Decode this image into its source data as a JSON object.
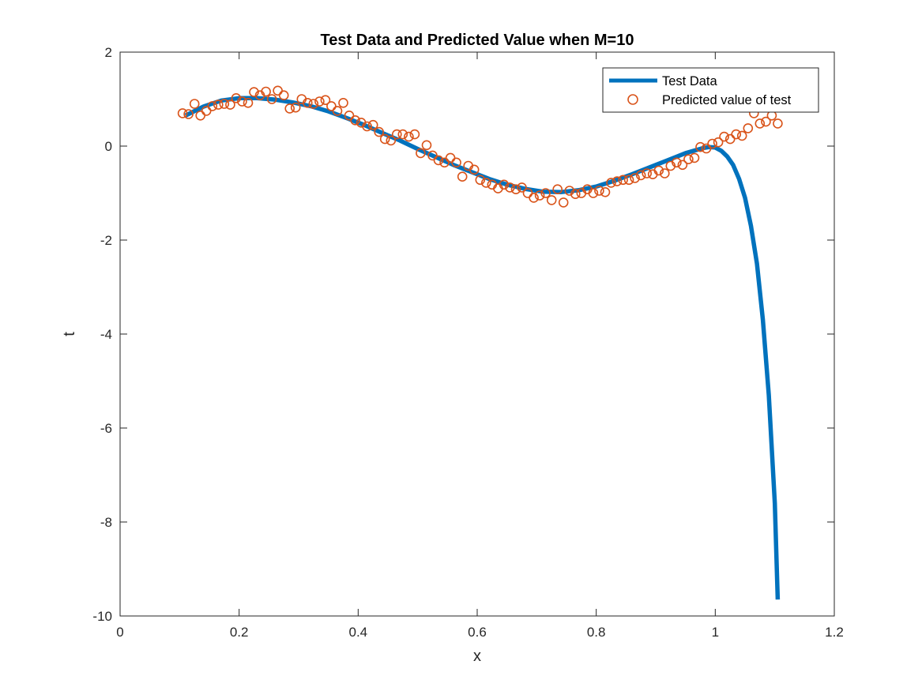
{
  "chart_data": {
    "type": "line",
    "title": "Test Data and Predicted Value when M=10",
    "xlabel": "x",
    "ylabel": "t",
    "xlim": [
      0,
      1.2
    ],
    "ylim": [
      -10,
      2
    ],
    "xticks": [
      0,
      0.2,
      0.4,
      0.6,
      0.8,
      1,
      1.2
    ],
    "xtick_labels": [
      "0",
      "0.2",
      "0.4",
      "0.6",
      "0.8",
      "1",
      "1.2"
    ],
    "yticks": [
      -10,
      -8,
      -6,
      -4,
      -2,
      0,
      2
    ],
    "ytick_labels": [
      "-10",
      "-8",
      "-6",
      "-4",
      "-2",
      "0",
      "2"
    ],
    "grid": false,
    "legend_position": "top-right",
    "colors": {
      "line": "#0072BD",
      "markers": "#D95319",
      "axes": "#262626"
    },
    "series": [
      {
        "name": "Test Data",
        "kind": "line",
        "x": [
          0.11,
          0.14,
          0.17,
          0.2,
          0.23,
          0.26,
          0.29,
          0.32,
          0.35,
          0.38,
          0.41,
          0.44,
          0.47,
          0.5,
          0.53,
          0.56,
          0.59,
          0.62,
          0.65,
          0.68,
          0.71,
          0.74,
          0.77,
          0.8,
          0.83,
          0.86,
          0.89,
          0.92,
          0.95,
          0.98,
          0.99,
          1.0,
          1.01,
          1.02,
          1.03,
          1.04,
          1.05,
          1.06,
          1.07,
          1.08,
          1.09,
          1.1,
          1.105
        ],
        "y": [
          0.65,
          0.84,
          0.97,
          1.02,
          1.02,
          0.99,
          0.93,
          0.85,
          0.74,
          0.6,
          0.45,
          0.28,
          0.12,
          -0.06,
          -0.23,
          -0.4,
          -0.55,
          -0.7,
          -0.82,
          -0.91,
          -0.97,
          -0.98,
          -0.94,
          -0.86,
          -0.74,
          -0.6,
          -0.45,
          -0.3,
          -0.15,
          -0.04,
          -0.02,
          -0.03,
          -0.1,
          -0.22,
          -0.4,
          -0.7,
          -1.1,
          -1.7,
          -2.5,
          -3.7,
          -5.3,
          -7.6,
          -9.65
        ]
      },
      {
        "name": "Predicted value of test",
        "kind": "markers",
        "x": [
          0.105,
          0.115,
          0.125,
          0.135,
          0.145,
          0.155,
          0.165,
          0.175,
          0.185,
          0.195,
          0.205,
          0.215,
          0.225,
          0.235,
          0.245,
          0.255,
          0.265,
          0.275,
          0.285,
          0.295,
          0.305,
          0.315,
          0.325,
          0.335,
          0.345,
          0.355,
          0.365,
          0.375,
          0.385,
          0.395,
          0.405,
          0.415,
          0.425,
          0.435,
          0.445,
          0.455,
          0.465,
          0.475,
          0.485,
          0.495,
          0.505,
          0.515,
          0.525,
          0.535,
          0.545,
          0.555,
          0.565,
          0.575,
          0.585,
          0.595,
          0.605,
          0.615,
          0.625,
          0.635,
          0.645,
          0.655,
          0.665,
          0.675,
          0.685,
          0.695,
          0.705,
          0.715,
          0.725,
          0.735,
          0.745,
          0.755,
          0.765,
          0.775,
          0.785,
          0.795,
          0.805,
          0.815,
          0.825,
          0.835,
          0.845,
          0.855,
          0.865,
          0.875,
          0.885,
          0.895,
          0.905,
          0.915,
          0.925,
          0.935,
          0.945,
          0.955,
          0.965,
          0.975,
          0.985,
          0.995,
          1.005,
          1.015,
          1.025,
          1.035,
          1.045,
          1.055,
          1.065,
          1.075,
          1.085,
          1.095,
          1.105
        ],
        "y": [
          0.7,
          0.68,
          0.9,
          0.65,
          0.75,
          0.85,
          0.88,
          0.9,
          0.88,
          1.02,
          0.95,
          0.92,
          1.15,
          1.08,
          1.16,
          1.0,
          1.18,
          1.08,
          0.8,
          0.82,
          1.0,
          0.92,
          0.9,
          0.95,
          0.98,
          0.85,
          0.75,
          0.92,
          0.65,
          0.55,
          0.5,
          0.42,
          0.45,
          0.3,
          0.15,
          0.12,
          0.25,
          0.25,
          0.2,
          0.25,
          -0.15,
          0.02,
          -0.2,
          -0.3,
          -0.35,
          -0.25,
          -0.35,
          -0.65,
          -0.42,
          -0.5,
          -0.72,
          -0.78,
          -0.82,
          -0.9,
          -0.82,
          -0.88,
          -0.92,
          -0.88,
          -1.0,
          -1.1,
          -1.05,
          -1.0,
          -1.15,
          -0.92,
          -1.2,
          -0.95,
          -1.02,
          -1.0,
          -0.92,
          -1.0,
          -0.95,
          -0.98,
          -0.78,
          -0.75,
          -0.72,
          -0.72,
          -0.68,
          -0.62,
          -0.58,
          -0.6,
          -0.52,
          -0.58,
          -0.42,
          -0.35,
          -0.4,
          -0.28,
          -0.25,
          -0.02,
          -0.05,
          0.05,
          0.08,
          0.2,
          0.15,
          0.25,
          0.22,
          0.38,
          0.7,
          0.48,
          0.52,
          0.65,
          0.48
        ]
      }
    ]
  }
}
